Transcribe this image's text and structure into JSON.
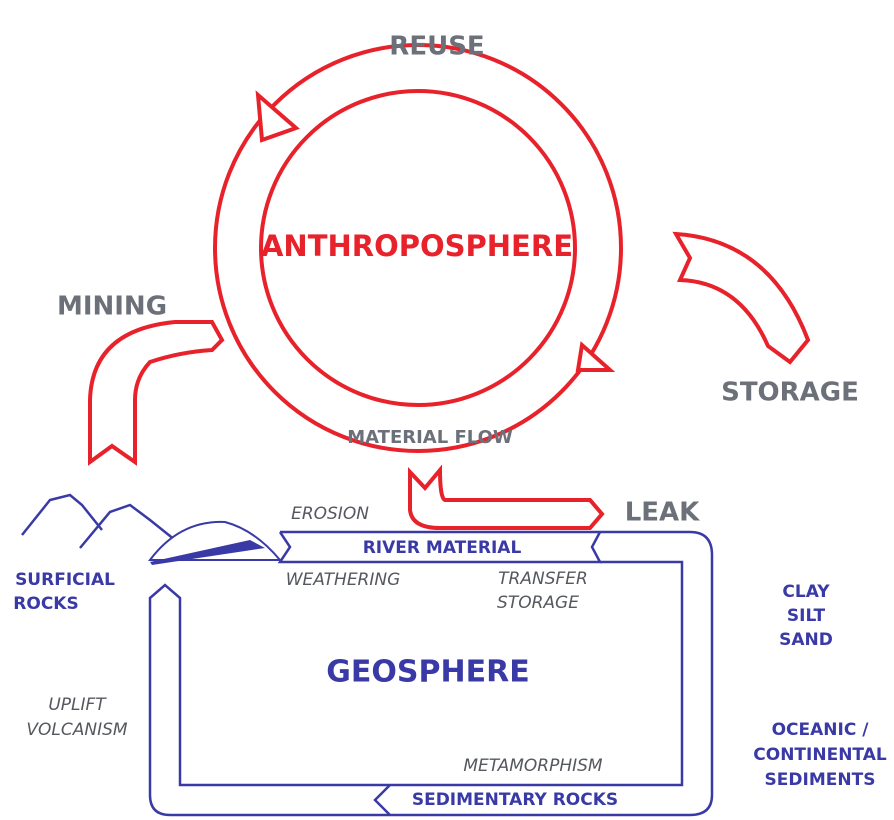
{
  "anthroposphere": {
    "title": "ANTHROPOSPHERE",
    "reuse": "REUSE",
    "mining": "MINING",
    "storage": "STORAGE",
    "material_flow": "MATERIAL FLOW",
    "leak": "LEAK"
  },
  "geosphere": {
    "title": "GEOSPHERE",
    "erosion": "EROSION",
    "river_material": "RIVER MATERIAL",
    "weathering": "WEATHERING",
    "transfer_storage": [
      "TRANSFER",
      "STORAGE"
    ],
    "surficial_rocks": [
      "SURFICIAL",
      "ROCKS"
    ],
    "clay_silt_sand": [
      "CLAY",
      "SILT",
      "SAND"
    ],
    "uplift_volcanism": [
      "UPLIFT",
      "VOLCANISM"
    ],
    "sediments": [
      "OCEANIC /",
      "CONTINENTAL",
      "SEDIMENTS"
    ],
    "metamorphism": "METAMORPHISM",
    "sedimentary_rocks": "SEDIMENTARY ROCKS"
  }
}
